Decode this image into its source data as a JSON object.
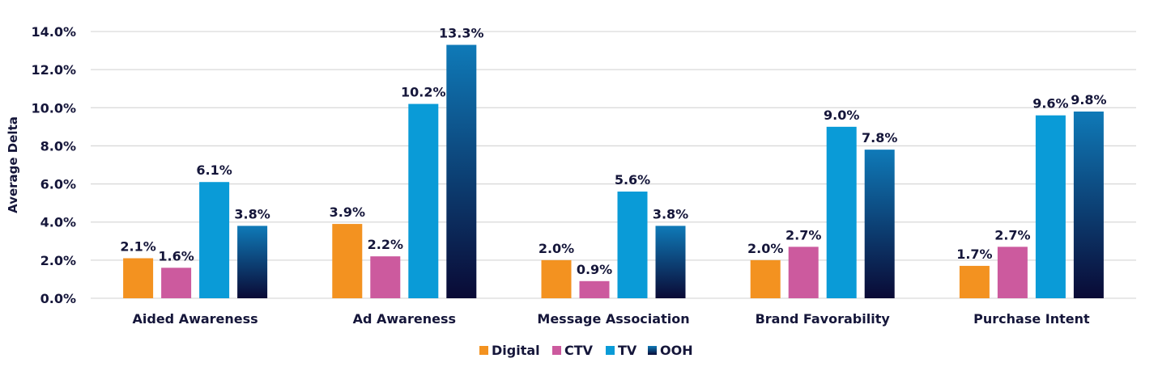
{
  "chart_data": {
    "type": "bar",
    "title": "",
    "xlabel": "",
    "ylabel": "Average Delta",
    "ylim": [
      0,
      14
    ],
    "yticks": [
      "0.0%",
      "2.0%",
      "4.0%",
      "6.0%",
      "8.0%",
      "10.0%",
      "12.0%",
      "14.0%"
    ],
    "grid": true,
    "legend_position": "bottom",
    "categories": [
      "Aided Awareness",
      "Ad Awareness",
      "Message Association",
      "Brand Favorability",
      "Purchase Intent"
    ],
    "series": [
      {
        "name": "Digital",
        "color": "#F39220",
        "values": [
          2.1,
          3.9,
          2.0,
          2.0,
          1.7
        ],
        "labels": [
          "2.1%",
          "3.9%",
          "2.0%",
          "2.0%",
          "1.7%"
        ]
      },
      {
        "name": "CTV",
        "color": "#CC5A9E",
        "values": [
          1.6,
          2.2,
          0.9,
          2.7,
          2.7
        ],
        "labels": [
          "1.6%",
          "2.2%",
          "0.9%",
          "2.7%",
          "2.7%"
        ]
      },
      {
        "name": "TV",
        "color": "#0A9BD7",
        "values": [
          6.1,
          10.2,
          5.6,
          9.0,
          9.6
        ],
        "labels": [
          "6.1%",
          "10.2%",
          "5.6%",
          "9.0%",
          "9.6%"
        ]
      },
      {
        "name": "OOH",
        "color": "#0F7AB8",
        "color_bottom": "#0A0A35",
        "values": [
          3.8,
          13.3,
          3.8,
          7.8,
          9.8
        ],
        "labels": [
          "3.8%",
          "13.3%",
          "3.8%",
          "7.8%",
          "9.8%"
        ]
      }
    ]
  }
}
